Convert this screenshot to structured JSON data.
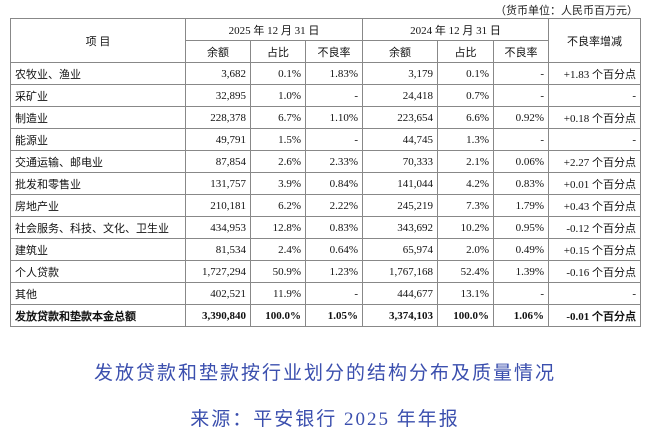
{
  "unit_note": "（货币单位：人民币百万元）",
  "table": {
    "headers": [
      "项 目",
      "2025 年 12 月 31 日",
      "2024 年 12 月 31 日",
      "不良率增减"
    ],
    "subheaders": [
      "余额",
      "占比",
      "不良率",
      "余额",
      "占比",
      "不良率"
    ],
    "rows": [
      [
        "农牧业、渔业",
        "3,682",
        "0.1%",
        "1.83%",
        "3,179",
        "0.1%",
        "-",
        "+1.83 个百分点"
      ],
      [
        "采矿业",
        "32,895",
        "1.0%",
        "-",
        "24,418",
        "0.7%",
        "-",
        "-"
      ],
      [
        "制造业",
        "228,378",
        "6.7%",
        "1.10%",
        "223,654",
        "6.6%",
        "0.92%",
        "+0.18 个百分点"
      ],
      [
        "能源业",
        "49,791",
        "1.5%",
        "-",
        "44,745",
        "1.3%",
        "-",
        "-"
      ],
      [
        "交通运输、邮电业",
        "87,854",
        "2.6%",
        "2.33%",
        "70,333",
        "2.1%",
        "0.06%",
        "+2.27 个百分点"
      ],
      [
        "批发和零售业",
        "131,757",
        "3.9%",
        "0.84%",
        "141,044",
        "4.2%",
        "0.83%",
        "+0.01 个百分点"
      ],
      [
        "房地产业",
        "210,181",
        "6.2%",
        "2.22%",
        "245,219",
        "7.3%",
        "1.79%",
        "+0.43 个百分点"
      ],
      [
        "社会服务、科技、文化、卫生业",
        "434,953",
        "12.8%",
        "0.83%",
        "343,692",
        "10.2%",
        "0.95%",
        "-0.12 个百分点"
      ],
      [
        "建筑业",
        "81,534",
        "2.4%",
        "0.64%",
        "65,974",
        "2.0%",
        "0.49%",
        "+0.15 个百分点"
      ],
      [
        "个人贷款",
        "1,727,294",
        "50.9%",
        "1.23%",
        "1,767,168",
        "52.4%",
        "1.39%",
        "-0.16 个百分点"
      ],
      [
        "其他",
        "402,521",
        "11.9%",
        "-",
        "444,677",
        "13.1%",
        "-",
        "-"
      ],
      [
        "发放贷款和垫款本金总额",
        "3,390,840",
        "100.0%",
        "1.05%",
        "3,374,103",
        "100.0%",
        "1.06%",
        "-0.01 个百分点"
      ]
    ]
  },
  "captions": [
    "发放贷款和垫款按行业划分的结构分布及质量情况",
    "来源：平安银行 2025 年年报"
  ]
}
